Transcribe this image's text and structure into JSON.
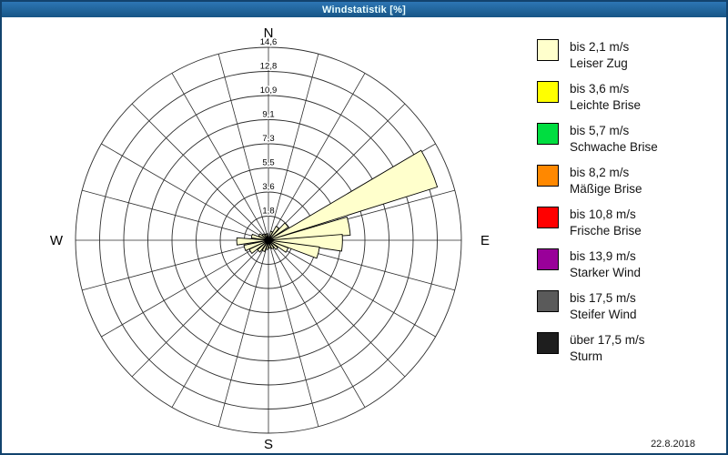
{
  "window": {
    "title": "Windstatistik [%]"
  },
  "date": "22.8.2018",
  "compass": {
    "north": "N",
    "east": "E",
    "south": "S",
    "west": "W"
  },
  "chart_data": {
    "type": "windrose",
    "title": "Windstatistik [%]",
    "units": "%",
    "sector_width_deg": 15,
    "max_value": 14.6,
    "radial_ticks": [
      "1,8",
      "3,6",
      "5,5",
      "7,3",
      "9,1",
      "10,9",
      "12,8",
      "14,6"
    ],
    "radial_tick_values": [
      1.8,
      3.6,
      5.5,
      7.3,
      9.1,
      10.9,
      12.8,
      14.6
    ],
    "grid": {
      "rings": 8,
      "spokes_deg": 15
    },
    "series": [
      {
        "name": "bis 2,1 m/s",
        "color": "#ffffcc",
        "points": [
          {
            "azimuth_deg": 20,
            "value": 0.7
          },
          {
            "azimuth_deg": 35,
            "value": 1.2
          },
          {
            "azimuth_deg": 50,
            "value": 1.8
          },
          {
            "azimuth_deg": 66,
            "value": 13.4
          },
          {
            "azimuth_deg": 80,
            "value": 6.2
          },
          {
            "azimuth_deg": 92,
            "value": 5.6
          },
          {
            "azimuth_deg": 104,
            "value": 3.9
          },
          {
            "azimuth_deg": 118,
            "value": 1.6
          },
          {
            "azimuth_deg": 135,
            "value": 0.9
          },
          {
            "azimuth_deg": 152,
            "value": 0.7
          },
          {
            "azimuth_deg": 170,
            "value": 0.6
          },
          {
            "azimuth_deg": 188,
            "value": 0.7
          },
          {
            "azimuth_deg": 205,
            "value": 0.9
          },
          {
            "azimuth_deg": 222,
            "value": 1.1
          },
          {
            "azimuth_deg": 238,
            "value": 1.6
          },
          {
            "azimuth_deg": 252,
            "value": 1.9
          },
          {
            "azimuth_deg": 268,
            "value": 2.4
          },
          {
            "azimuth_deg": 284,
            "value": 1.3
          },
          {
            "azimuth_deg": 300,
            "value": 0.8
          },
          {
            "azimuth_deg": 316,
            "value": 0.6
          },
          {
            "azimuth_deg": 332,
            "value": 0.5
          },
          {
            "azimuth_deg": 348,
            "value": 0.5
          }
        ]
      }
    ],
    "legend_position": "right"
  },
  "legend": [
    {
      "speed": "bis 2,1 m/s",
      "label": "Leiser Zug",
      "color": "#ffffcc"
    },
    {
      "speed": "bis 3,6 m/s",
      "label": "Leichte Brise",
      "color": "#ffff00"
    },
    {
      "speed": "bis 5,7 m/s",
      "label": "Schwache Brise",
      "color": "#00dd40"
    },
    {
      "speed": "bis 8,2 m/s",
      "label": "Mäßige Brise",
      "color": "#ff8800"
    },
    {
      "speed": "bis 10,8 m/s",
      "label": "Frische Brise",
      "color": "#ff0000"
    },
    {
      "speed": "bis 13,9 m/s",
      "label": "Starker Wind",
      "color": "#990099"
    },
    {
      "speed": "bis 17,5 m/s",
      "label": "Steifer Wind",
      "color": "#5a5a5a"
    },
    {
      "speed": "über 17,5 m/s",
      "label": "Sturm",
      "color": "#1e1e1e"
    }
  ]
}
